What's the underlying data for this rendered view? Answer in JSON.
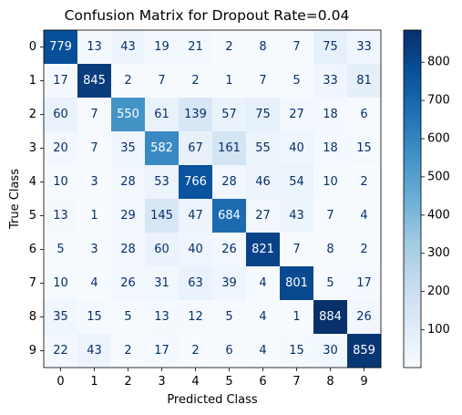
{
  "chart_data": {
    "type": "heatmap",
    "title": "Confusion Matrix for Dropout Rate=0.04",
    "xlabel": "Predicted Class",
    "ylabel": "True Class",
    "x_categories": [
      "0",
      "1",
      "2",
      "3",
      "4",
      "5",
      "6",
      "7",
      "8",
      "9"
    ],
    "y_categories": [
      "0",
      "1",
      "2",
      "3",
      "4",
      "5",
      "6",
      "7",
      "8",
      "9"
    ],
    "values": [
      [
        779,
        13,
        43,
        19,
        21,
        2,
        8,
        7,
        75,
        33
      ],
      [
        17,
        845,
        2,
        7,
        2,
        1,
        7,
        5,
        33,
        81
      ],
      [
        60,
        7,
        550,
        61,
        139,
        57,
        75,
        27,
        18,
        6
      ],
      [
        20,
        7,
        35,
        582,
        67,
        161,
        55,
        40,
        18,
        15
      ],
      [
        10,
        3,
        28,
        53,
        766,
        28,
        46,
        54,
        10,
        2
      ],
      [
        13,
        1,
        29,
        145,
        47,
        684,
        27,
        43,
        7,
        4
      ],
      [
        5,
        3,
        28,
        60,
        40,
        26,
        821,
        7,
        8,
        2
      ],
      [
        10,
        4,
        26,
        31,
        63,
        39,
        4,
        801,
        5,
        17
      ],
      [
        35,
        15,
        5,
        13,
        12,
        5,
        4,
        1,
        884,
        26
      ],
      [
        22,
        43,
        2,
        17,
        2,
        6,
        4,
        15,
        30,
        859
      ]
    ],
    "colormap": "Blues",
    "colorbar": {
      "range": [
        1,
        884
      ],
      "ticks": [
        100,
        200,
        300,
        400,
        500,
        600,
        700,
        800
      ]
    },
    "grid": false
  }
}
